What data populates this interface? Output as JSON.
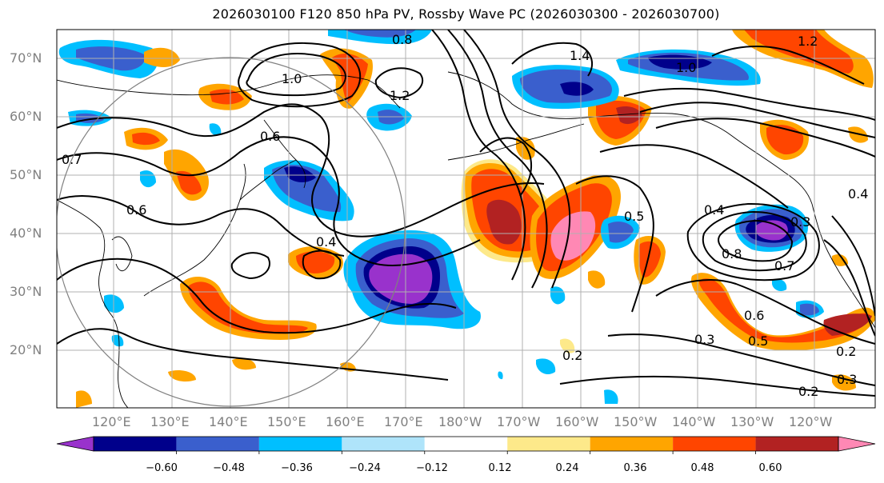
{
  "title": "2026030100 F120 850 hPa PV, Rossby Wave PC (2026030300 - 2026030700)",
  "latitude_labels": [
    "70°N",
    "60°N",
    "50°N",
    "40°N",
    "30°N",
    "20°N"
  ],
  "longitude_labels": [
    "120°E",
    "130°E",
    "140°E",
    "150°E",
    "160°E",
    "170°E",
    "180°W",
    "170°W",
    "160°W",
    "150°W",
    "140°W",
    "130°W",
    "120°W"
  ],
  "contour_labels": [
    "1.0",
    "1.2",
    "0.8",
    "0.6",
    "0.7",
    "0.6",
    "0.4",
    "0.3",
    "0.2",
    "0.4",
    "0.5",
    "0.3",
    "0.4",
    "0.8",
    "0.7",
    "0.5",
    "0.6",
    "0.3",
    "0.2",
    "0.2",
    "1.4",
    "1.0",
    "1.2"
  ],
  "colorbar": {
    "ticks": [
      "−0.60",
      "−0.48",
      "−0.36",
      "−0.24",
      "−0.12",
      "0.12",
      "0.24",
      "0.36",
      "0.48",
      "0.60"
    ],
    "colors": [
      "#9932cc",
      "#00008b",
      "#3a5fcd",
      "#00bfff",
      "#afe4fa",
      "#ffffff",
      "#fde98a",
      "#ffa500",
      "#ff4500",
      "#b22222",
      "#ff88b4"
    ]
  },
  "colors": {
    "purple": "#9932cc",
    "navy": "#00008b",
    "royal": "#3a5fcd",
    "sky": "#00bfff",
    "pale": "#afe4fa",
    "yellow": "#fde98a",
    "orange": "#ffa500",
    "red": "#ff4500",
    "dark_red": "#b22222",
    "pink": "#ff88b4",
    "grid": "#b0b0b0",
    "axis_text": "#808080"
  }
}
